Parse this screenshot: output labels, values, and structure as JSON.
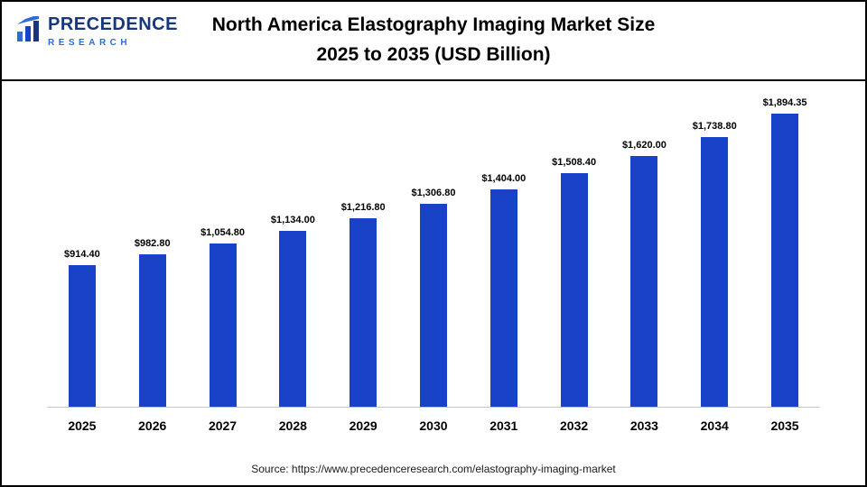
{
  "header": {
    "title_line1": "North America Elastography Imaging Market Size",
    "title_line2": "2025 to 2035 (USD Billion)",
    "logo": {
      "line1": "PRECEDENCE",
      "line2": "RESEARCH"
    }
  },
  "chart_data": {
    "type": "bar",
    "title": "North America Elastography Imaging Market Size 2025 to 2035 (USD Billion)",
    "categories": [
      "2025",
      "2026",
      "2027",
      "2028",
      "2029",
      "2030",
      "2031",
      "2032",
      "2033",
      "2034",
      "2035"
    ],
    "values": [
      914.4,
      982.8,
      1054.8,
      1134.0,
      1216.8,
      1306.8,
      1404.0,
      1508.4,
      1620.0,
      1738.8,
      1894.35
    ],
    "value_labels": [
      "$914.40",
      "$982.80",
      "$1,054.80",
      "$1,134.00",
      "$1,216.80",
      "$1,306.80",
      "$1,404.00",
      "$1,508.40",
      "$1,620.00",
      "$1,738.80",
      "$1,894.35"
    ],
    "xlabel": "",
    "ylabel": "",
    "ylim": [
      0,
      1950
    ],
    "bar_color": "#1843C8",
    "grid": false,
    "legend": false
  },
  "footer": {
    "source": "Source: https://www.precedenceresearch.com/elastography-imaging-market"
  }
}
